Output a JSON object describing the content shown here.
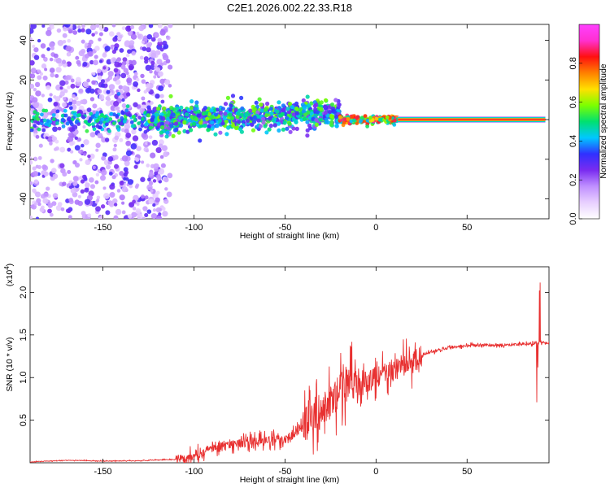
{
  "title": "C2E1.2026.002.22.33.R18",
  "chart_data": [
    {
      "type": "heatmap",
      "xlabel": "Height of straight line (km)",
      "ylabel": "Frequency (Hz)",
      "xlim": [
        -190,
        95
      ],
      "ylim": [
        -50,
        48
      ],
      "xticks": [
        -150,
        -100,
        -50,
        0,
        50
      ],
      "yticks": [
        -40,
        -20,
        0,
        20,
        40
      ],
      "colorbar": {
        "label": "Normalized spectral amplitude",
        "range": [
          0.0,
          1.0
        ],
        "ticks": [
          "0.0",
          "0.2",
          "0.4",
          "0.6",
          "0.8"
        ],
        "tick_values": [
          0.0,
          0.2,
          0.4,
          0.6,
          0.8
        ],
        "colors": [
          "#ffffff",
          "#e8d0ff",
          "#c090ff",
          "#7a2cf0",
          "#3030ff",
          "#00c8ff",
          "#00e070",
          "#7cff00",
          "#ffe000",
          "#ff8000",
          "#ff1010",
          "#ff30d0",
          "#ff40ff"
        ]
      },
      "regions": [
        {
          "x": [
            -190,
            -113
          ],
          "f": [
            -50,
            48
          ],
          "amplitude": [
            0.05,
            0.3
          ],
          "description_values": "scattered"
        },
        {
          "x": [
            -125,
            -20
          ],
          "f": [
            -10,
            15
          ],
          "amplitude": [
            0.2,
            0.6
          ]
        },
        {
          "x": [
            -20,
            12
          ],
          "f": [
            -3,
            3
          ],
          "amplitude": [
            0.4,
            0.9
          ]
        },
        {
          "x": [
            12,
            93
          ],
          "f": [
            -2,
            2
          ],
          "amplitude": [
            0.7,
            0.95
          ]
        }
      ]
    },
    {
      "type": "line",
      "xlabel": "Height of straight line (km)",
      "ylabel": "SNR (10 * v/v)",
      "multiplier": "(x10",
      "multiplier_exp": "4",
      "multiplier_close": ")",
      "xlim": [
        -190,
        95
      ],
      "ylim": [
        0,
        23000
      ],
      "xticks": [
        -150,
        -100,
        -50,
        0,
        50
      ],
      "yticks": [
        0.5,
        1.0,
        1.5,
        2.0
      ],
      "color": "#e83030",
      "series": [
        {
          "x": [
            -190,
            -170,
            -150,
            -130,
            -110,
            -100,
            -90,
            -80,
            -70,
            -60,
            -50,
            -40,
            -35,
            -30,
            -25,
            -20,
            -15,
            -10,
            0,
            10,
            20,
            25,
            30,
            40,
            50,
            60,
            70,
            80,
            88,
            91,
            93,
            95
          ],
          "values": [
            100,
            300,
            200,
            250,
            400,
            800,
            1800,
            2200,
            2400,
            2600,
            2800,
            4200,
            5500,
            6000,
            7000,
            8500,
            9500,
            9000,
            10000,
            11000,
            11800,
            12500,
            13000,
            13500,
            13800,
            13800,
            13800,
            13900,
            14000,
            14100,
            14000,
            14000
          ]
        }
      ]
    }
  ]
}
